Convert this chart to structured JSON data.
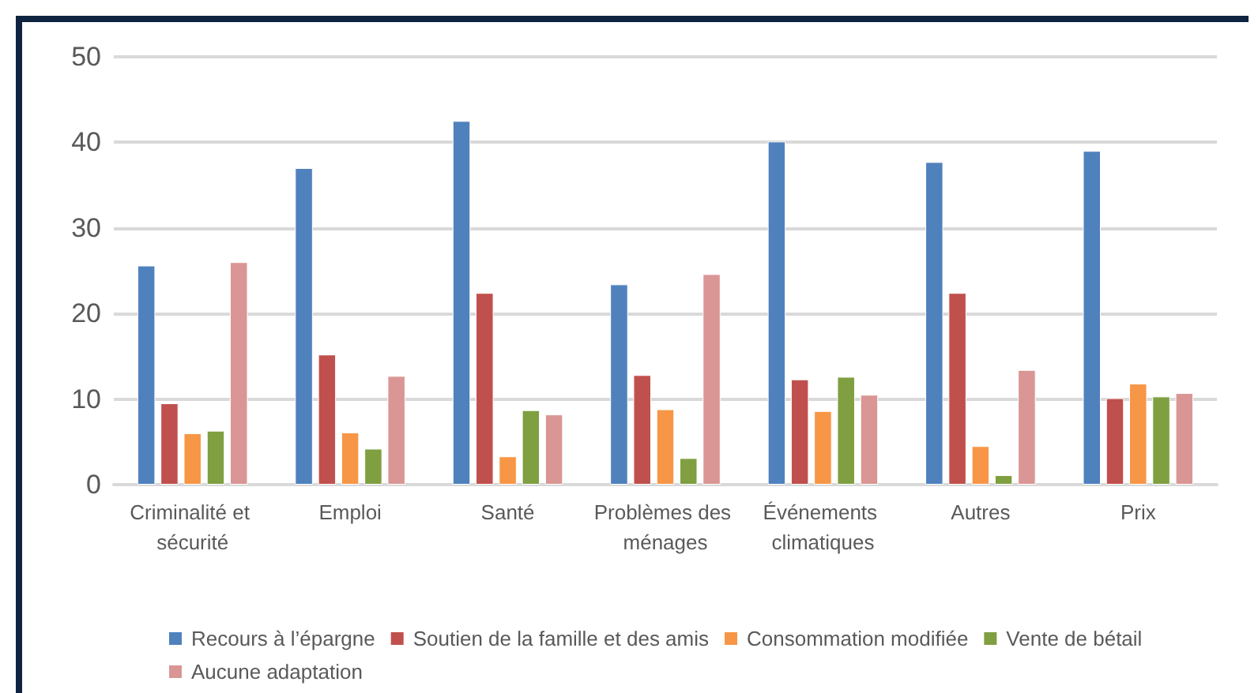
{
  "chart_data": {
    "type": "bar",
    "categories": [
      "Criminalité et sécurité",
      "Emploi",
      "Santé",
      "Problèmes des ménages",
      "Événements climatiques",
      "Autres",
      "Prix"
    ],
    "series": [
      {
        "name": "Recours à l’épargne",
        "color": "#4f81bd",
        "values": [
          25.6,
          37.0,
          42.5,
          23.4,
          40.1,
          37.7,
          39.0
        ]
      },
      {
        "name": "Soutien de la famille et des amis",
        "color": "#c0504d",
        "values": [
          9.5,
          15.2,
          22.4,
          12.8,
          12.3,
          22.4,
          10.1
        ]
      },
      {
        "name": "Consommation modifiée",
        "color": "#f79646",
        "values": [
          6.0,
          6.1,
          3.3,
          8.8,
          8.6,
          4.5,
          11.8
        ]
      },
      {
        "name": "Vente de bétail",
        "color": "#7f9f40",
        "values": [
          6.3,
          4.2,
          8.7,
          3.1,
          12.6,
          1.1,
          10.3
        ]
      },
      {
        "name": "Aucune adaptation",
        "color": "#d99694",
        "values": [
          26.0,
          12.7,
          8.2,
          24.6,
          10.5,
          13.4,
          10.7
        ]
      }
    ],
    "ylim": [
      0,
      50
    ],
    "yticks": [
      0,
      10,
      20,
      30,
      40,
      50
    ],
    "grid": "y",
    "legend": "bottom"
  }
}
